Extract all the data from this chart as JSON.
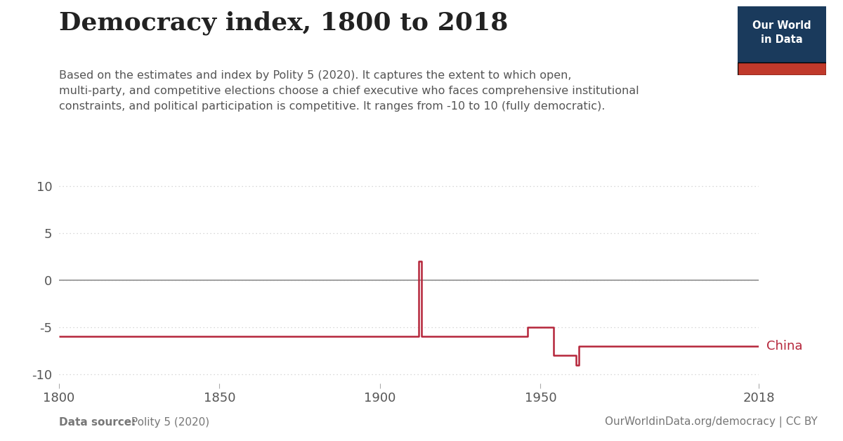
{
  "title": "Democracy index, 1800 to 2018",
  "subtitle_lines": [
    "Based on the estimates and index by Polity 5 (2020). It captures the extent to which open,",
    "multi-party, and competitive elections choose a chief executive who faces comprehensive institutional",
    "constraints, and political participation is competitive. It ranges from -10 to 10 (fully democratic)."
  ],
  "line_color": "#b5253a",
  "line_label": "China",
  "zero_line_color": "#999999",
  "grid_color": "#cccccc",
  "background_color": "#ffffff",
  "xlim": [
    1800,
    2018
  ],
  "ylim": [
    -11,
    11
  ],
  "yticks": [
    -10,
    -5,
    0,
    5,
    10
  ],
  "xticks": [
    1800,
    1850,
    1900,
    1950,
    2018
  ],
  "data_source_bold": "Data source:",
  "data_source": " Polity 5 (2020)",
  "url_label": "OurWorldinData.org/democracy | CC BY",
  "owid_logo_bg": "#1a3a5c",
  "owid_logo_red": "#c0392b",
  "owid_logo_text": "Our World\nin Data",
  "china_years": [
    1800,
    1911,
    1912,
    1913,
    1916,
    1928,
    1945,
    1946,
    1949,
    1950,
    1954,
    1955,
    1961,
    1962,
    1966,
    1977,
    1978,
    2018
  ],
  "china_values": [
    -6,
    -6,
    2,
    -6,
    -6,
    -6,
    -6,
    -5,
    -5,
    -5,
    -8,
    -8,
    -9,
    -7,
    -7,
    -7,
    -7,
    -7
  ]
}
